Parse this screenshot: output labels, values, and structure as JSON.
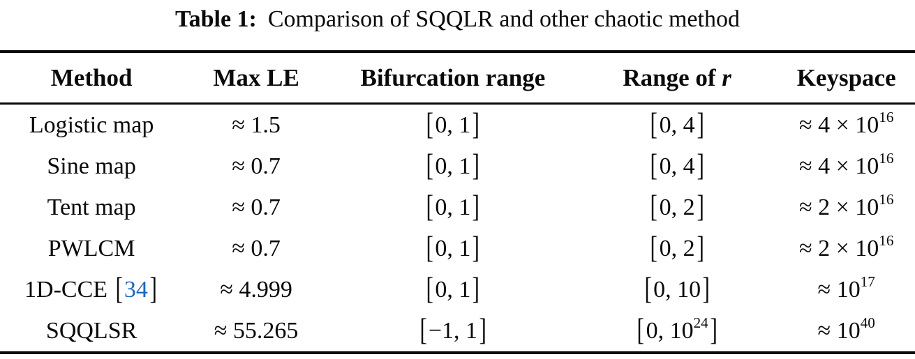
{
  "caption": {
    "label": "Table 1:",
    "text": "Comparison of SQQLR and other chaotic method"
  },
  "colors": {
    "text": "#0a0a0a",
    "citation_link": "#1b66c1",
    "rule": "#0a0a0a",
    "background": "#ffffff"
  },
  "table": {
    "headers": [
      [
        {
          "t": "Method"
        }
      ],
      [
        {
          "t": "Max LE"
        }
      ],
      [
        {
          "t": "Bifurcation range"
        }
      ],
      [
        {
          "t": "Range of "
        },
        {
          "t": "r",
          "i": true
        }
      ],
      [
        {
          "t": "Keyspace"
        }
      ]
    ],
    "rows": [
      {
        "cells": [
          [
            {
              "t": "Logistic map"
            }
          ],
          [
            {
              "t": "≈ 1.5"
            }
          ],
          [
            {
              "t": "[",
              "br": true
            },
            {
              "t": "0, 1"
            },
            {
              "t": "]",
              "br": true
            }
          ],
          [
            {
              "t": "[",
              "br": true
            },
            {
              "t": "0, 4"
            },
            {
              "t": "]",
              "br": true
            }
          ],
          [
            {
              "t": "≈ 4 × 10"
            },
            {
              "t": "16",
              "sup": true
            }
          ]
        ]
      },
      {
        "cells": [
          [
            {
              "t": "Sine map"
            }
          ],
          [
            {
              "t": "≈ 0.7"
            }
          ],
          [
            {
              "t": "[",
              "br": true
            },
            {
              "t": "0, 1"
            },
            {
              "t": "]",
              "br": true
            }
          ],
          [
            {
              "t": "[",
              "br": true
            },
            {
              "t": "0, 4"
            },
            {
              "t": "]",
              "br": true
            }
          ],
          [
            {
              "t": "≈ 4 × 10"
            },
            {
              "t": "16",
              "sup": true
            }
          ]
        ]
      },
      {
        "cells": [
          [
            {
              "t": "Tent map"
            }
          ],
          [
            {
              "t": "≈ 0.7"
            }
          ],
          [
            {
              "t": "[",
              "br": true
            },
            {
              "t": "0, 1"
            },
            {
              "t": "]",
              "br": true
            }
          ],
          [
            {
              "t": "[",
              "br": true
            },
            {
              "t": "0, 2"
            },
            {
              "t": "]",
              "br": true
            }
          ],
          [
            {
              "t": "≈ 2 × 10"
            },
            {
              "t": "16",
              "sup": true
            }
          ]
        ]
      },
      {
        "cells": [
          [
            {
              "t": "PWLCM"
            }
          ],
          [
            {
              "t": "≈ 0.7"
            }
          ],
          [
            {
              "t": "[",
              "br": true
            },
            {
              "t": "0, 1"
            },
            {
              "t": "]",
              "br": true
            }
          ],
          [
            {
              "t": "[",
              "br": true
            },
            {
              "t": "0, 2"
            },
            {
              "t": "]",
              "br": true
            }
          ],
          [
            {
              "t": "≈ 2 × 10"
            },
            {
              "t": "16",
              "sup": true
            }
          ]
        ]
      },
      {
        "cells": [
          [
            {
              "t": "1D-CCE "
            },
            {
              "t": "[",
              "br": true
            },
            {
              "t": "34",
              "link": true
            },
            {
              "t": "]",
              "br": true
            }
          ],
          [
            {
              "t": "≈ 4.999"
            }
          ],
          [
            {
              "t": "[",
              "br": true
            },
            {
              "t": "0, 1"
            },
            {
              "t": "]",
              "br": true
            }
          ],
          [
            {
              "t": "[",
              "br": true
            },
            {
              "t": "0, 10"
            },
            {
              "t": "]",
              "br": true
            }
          ],
          [
            {
              "t": "≈ 10"
            },
            {
              "t": "17",
              "sup": true
            }
          ]
        ]
      },
      {
        "cells": [
          [
            {
              "t": "SQQLSR"
            }
          ],
          [
            {
              "t": "≈ 55.265"
            }
          ],
          [
            {
              "t": "[",
              "br": true
            },
            {
              "t": "−1, 1"
            },
            {
              "t": "]",
              "br": true
            }
          ],
          [
            {
              "t": "[",
              "br": true
            },
            {
              "t": "0, 10"
            },
            {
              "t": "24",
              "sup": true
            },
            {
              "t": "]",
              "br": true
            }
          ],
          [
            {
              "t": "≈ 10"
            },
            {
              "t": "40",
              "sup": true
            }
          ]
        ]
      }
    ]
  }
}
